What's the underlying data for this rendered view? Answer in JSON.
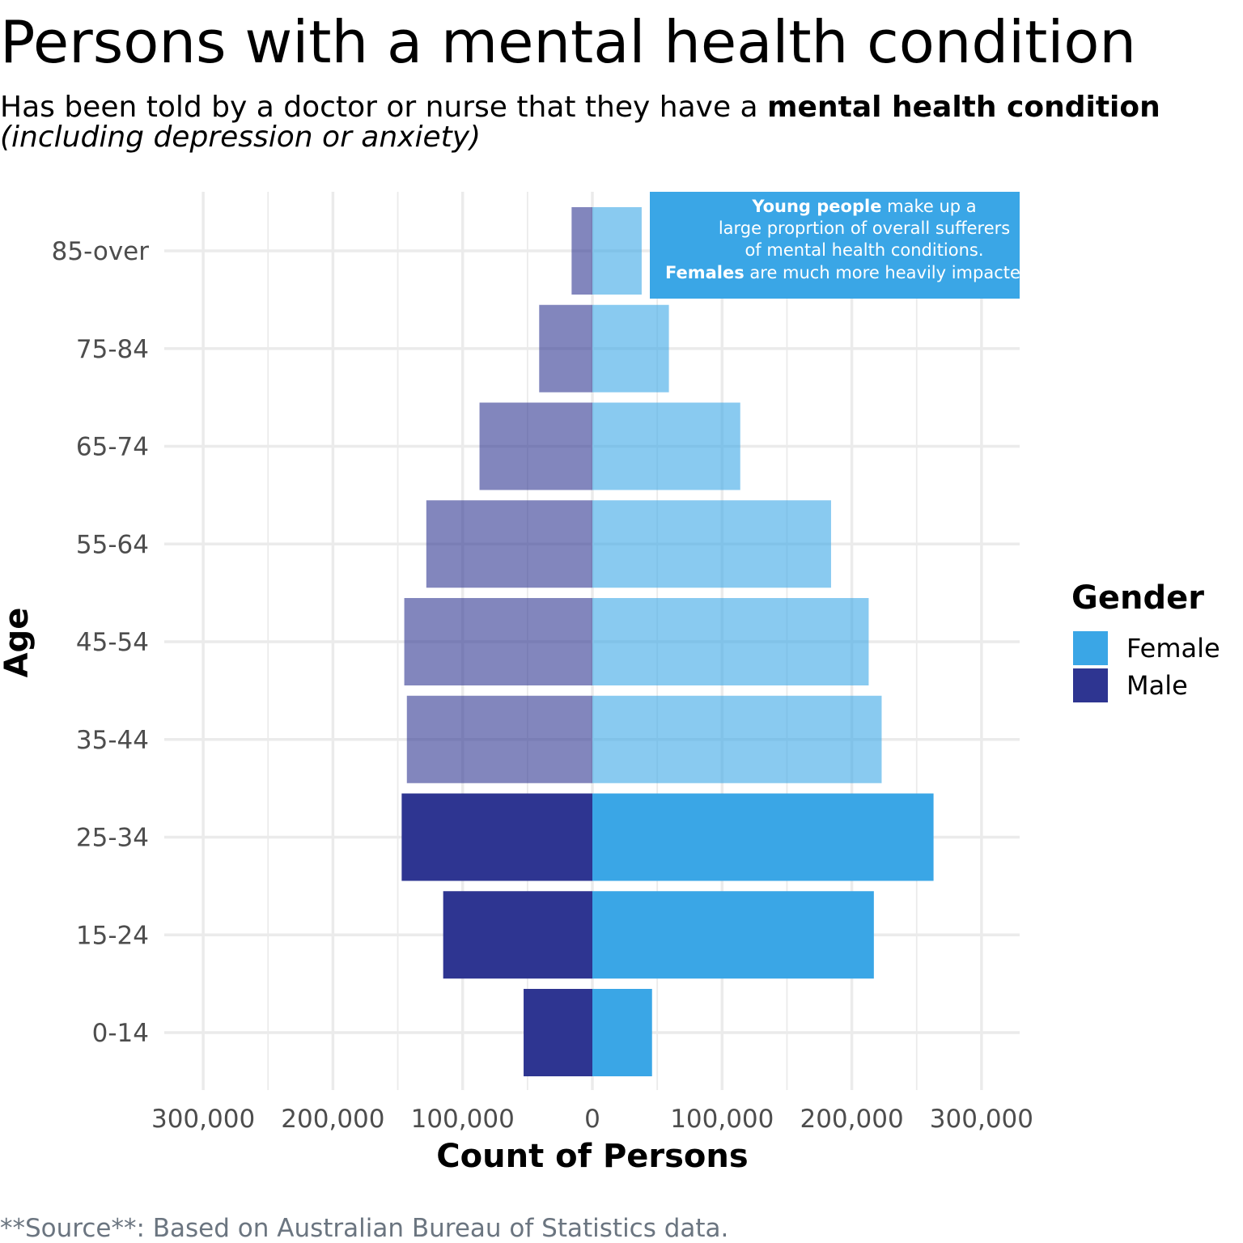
{
  "title": "Persons with a mental health condition",
  "subtitle": {
    "line1_prefix": "Has been told by a doctor or nurse that they have a ",
    "line1_bold": "mental health condition",
    "line2_italic": "(including depression or anxiety)"
  },
  "caption": "**Source**: Based on Australian Bureau of Statistics data.",
  "annotation": {
    "line1_bold": "Young people",
    "line1_rest": " make up a",
    "line2": "large proprtion of overall sufferers",
    "line3": "of mental health conditions.",
    "line4_bold": "Females",
    "line4_rest": " are much more heavily impacted.",
    "bg_color": "#3AA6E6"
  },
  "legend": {
    "title": "Gender",
    "items": [
      {
        "label": "Female",
        "color": "#3AA6E6"
      },
      {
        "label": "Male",
        "color": "#2E3591"
      }
    ]
  },
  "chart_data": {
    "type": "bar",
    "orientation": "horizontal",
    "categories": [
      "0-14",
      "15-24",
      "25-34",
      "35-44",
      "45-54",
      "55-64",
      "65-74",
      "75-84",
      "85-over"
    ],
    "series": [
      {
        "name": "Female",
        "values": [
          46000,
          217000,
          263000,
          223000,
          213000,
          184000,
          114000,
          59000,
          38000
        ]
      },
      {
        "name": "Male",
        "values": [
          53000,
          115000,
          147000,
          143000,
          145000,
          128000,
          87000,
          41000,
          16000
        ]
      }
    ],
    "highlighted_categories": [
      "0-14",
      "15-24",
      "25-34"
    ],
    "xlabel": "Count of Persons",
    "ylabel": "Age",
    "xlim": [
      -300000,
      300000
    ],
    "x_tick_values": [
      -300000,
      -200000,
      -100000,
      0,
      100000,
      200000,
      300000
    ],
    "x_tick_labels": [
      "300,000",
      "200,000",
      "100,000",
      "0",
      "100,000",
      "200,000",
      "300,000"
    ],
    "grid": true,
    "legend_position": "right"
  }
}
